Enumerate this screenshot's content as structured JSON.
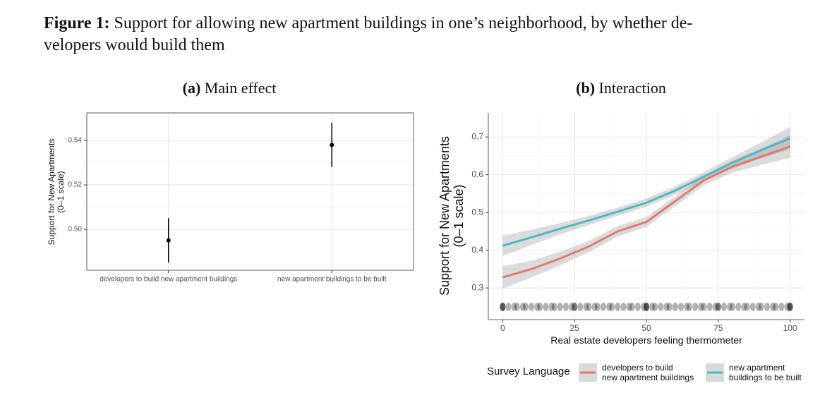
{
  "caption": {
    "label": "Figure 1:",
    "text": "Support for allowing new apartment buildings in one’s neighborhood, by whether de-\nvelopers would build them"
  },
  "chart_data": [
    {
      "type": "pointrange",
      "panel_label": "(a)",
      "title": "Main effect",
      "ylabel": "Support for New Apartments\n(0–1 scale)",
      "categories": [
        "developers to build new apartment buildings",
        "new apartment buildings to be built"
      ],
      "values": [
        0.495,
        0.538
      ],
      "errors": [
        0.01,
        0.01
      ],
      "color": "#000000",
      "ylim": [
        0.4816,
        0.5524
      ],
      "yticks": [
        {
          "value": 0.5,
          "label": "0.50"
        },
        0.52,
        0.54
      ],
      "grid": true
    },
    {
      "type": "line",
      "panel_label": "(b)",
      "title": "Interaction",
      "xlabel": "Real estate developers feeling thermometer",
      "ylabel": "Support for New Apartments\n(0–1 scale)",
      "x": [
        0,
        10,
        20,
        30,
        40,
        50,
        60,
        70,
        80,
        90,
        100
      ],
      "series": [
        {
          "name": "developers to build\nnew apartment buildings",
          "color": "#e07b72",
          "values": [
            0.328,
            0.35,
            0.378,
            0.41,
            0.45,
            0.475,
            0.53,
            0.585,
            0.622,
            0.648,
            0.675
          ],
          "ci_lower": [
            0.298,
            0.328,
            0.36,
            0.395,
            0.436,
            0.462,
            0.517,
            0.572,
            0.606,
            0.626,
            0.645
          ],
          "ci_upper": [
            0.358,
            0.372,
            0.396,
            0.425,
            0.464,
            0.488,
            0.543,
            0.598,
            0.638,
            0.67,
            0.705
          ]
        },
        {
          "name": "new apartment\nbuildings to be built",
          "color": "#4fb7c4",
          "values": [
            0.412,
            0.434,
            0.457,
            0.479,
            0.502,
            0.526,
            0.558,
            0.595,
            0.632,
            0.665,
            0.697
          ],
          "ci_lower": [
            0.385,
            0.414,
            0.442,
            0.467,
            0.491,
            0.515,
            0.547,
            0.583,
            0.617,
            0.644,
            0.667
          ],
          "ci_upper": [
            0.439,
            0.454,
            0.472,
            0.491,
            0.513,
            0.537,
            0.569,
            0.607,
            0.647,
            0.686,
            0.727
          ]
        }
      ],
      "rug": {
        "y": 0.25,
        "x": [
          0,
          0,
          0,
          2,
          4,
          5,
          7,
          8,
          10,
          12,
          13,
          15,
          17,
          18,
          20,
          22,
          24,
          25,
          25,
          27,
          29,
          30,
          32,
          33,
          35,
          37,
          38,
          40,
          42,
          44,
          45,
          47,
          49,
          50,
          50,
          50,
          52,
          53,
          55,
          57,
          58,
          60,
          62,
          64,
          65,
          67,
          69,
          70,
          72,
          74,
          75,
          75,
          77,
          79,
          80,
          82,
          84,
          85,
          87,
          89,
          90,
          92,
          94,
          95,
          97,
          99,
          100,
          100,
          100
        ]
      },
      "xlim": [
        -5,
        105
      ],
      "ylim": [
        0.216,
        0.764
      ],
      "xticks": [
        0,
        25,
        50,
        75,
        100
      ],
      "yticks": [
        0.3,
        0.4,
        0.5,
        0.6,
        0.7
      ],
      "grid": true,
      "legend_title": "Survey Language",
      "legend": "bottom"
    }
  ]
}
